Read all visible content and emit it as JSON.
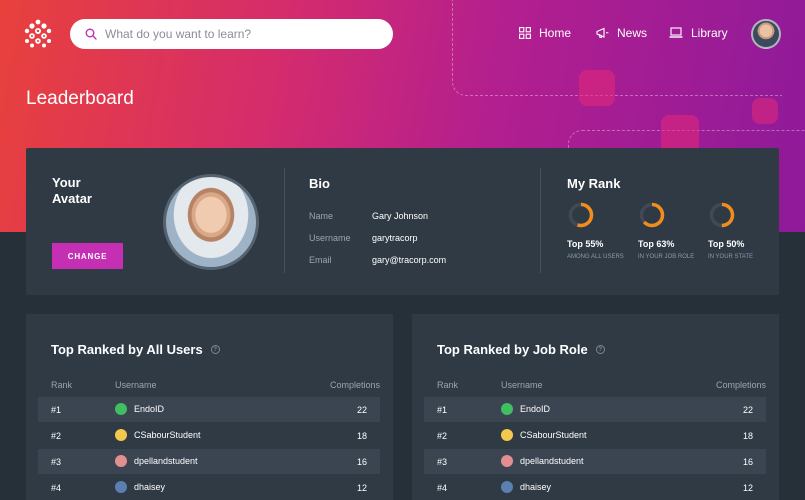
{
  "header": {
    "search_placeholder": "What do you want to learn?",
    "nav": [
      {
        "label": "Home",
        "icon": "grid-icon"
      },
      {
        "label": "News",
        "icon": "megaphone-icon"
      },
      {
        "label": "Library",
        "icon": "laptop-icon"
      }
    ]
  },
  "page": {
    "title": "Leaderboard"
  },
  "profile": {
    "avatar_heading": "Your Avatar",
    "change_label": "CHANGE",
    "bio_title": "Bio",
    "bio": [
      {
        "key": "Name",
        "value": "Gary Johnson"
      },
      {
        "key": "Username",
        "value": "garytracorp"
      },
      {
        "key": "Email",
        "value": "gary@tracorp.com"
      }
    ],
    "rank_title": "My Rank",
    "ranks": [
      {
        "pct_label": "Top 55%",
        "sub": "AMONG ALL USERS",
        "fraction": 0.55
      },
      {
        "pct_label": "Top 63%",
        "sub": "IN YOUR JOB ROLE",
        "fraction": 0.63
      },
      {
        "pct_label": "Top 50%",
        "sub": "IN YOUR STATE",
        "fraction": 0.5
      }
    ]
  },
  "boards": [
    {
      "title": "Top Ranked by All Users",
      "headers": {
        "rank": "Rank",
        "user": "Username",
        "comp": "Completions"
      },
      "rows": [
        {
          "rank": "#1",
          "user": "EndoID",
          "comp": "22",
          "avatar_color": "#3fbf5f"
        },
        {
          "rank": "#2",
          "user": "CSabourStudent",
          "comp": "18",
          "avatar_color": "#f2c94c"
        },
        {
          "rank": "#3",
          "user": "dpellandstudent",
          "comp": "16",
          "avatar_color": "#e38f8f"
        },
        {
          "rank": "#4",
          "user": "dhaisey",
          "comp": "12",
          "avatar_color": "#5b7fb0"
        }
      ]
    },
    {
      "title": "Top Ranked by Job Role",
      "headers": {
        "rank": "Rank",
        "user": "Username",
        "comp": "Completions"
      },
      "rows": [
        {
          "rank": "#1",
          "user": "EndoID",
          "comp": "22",
          "avatar_color": "#3fbf5f"
        },
        {
          "rank": "#2",
          "user": "CSabourStudent",
          "comp": "18",
          "avatar_color": "#f2c94c"
        },
        {
          "rank": "#3",
          "user": "dpellandstudent",
          "comp": "16",
          "avatar_color": "#e38f8f"
        },
        {
          "rank": "#4",
          "user": "dhaisey",
          "comp": "12",
          "avatar_color": "#5b7fb0"
        }
      ]
    }
  ],
  "colors": {
    "accent": "#c52fb4",
    "ring_orange": "#f28c1c",
    "ring_track": "#3f4a56"
  }
}
